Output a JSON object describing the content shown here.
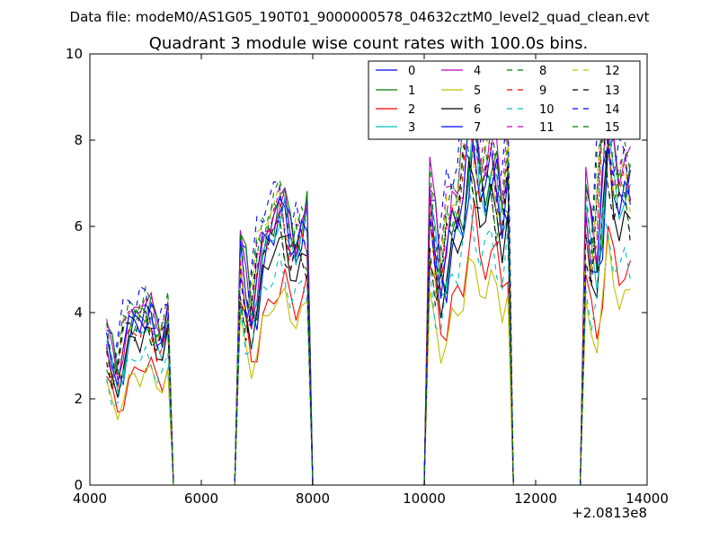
{
  "figure": {
    "suptitle": "Data file: modeM0/AS1G05_190T01_9000000578_04632cztM0_level2_quad_clean.evt",
    "title": "Quadrant 3 module wise count rates with 100.0s bins.",
    "offset_label": "+2.0813e8"
  },
  "chart_data": {
    "type": "line",
    "xlim": [
      4000,
      14000
    ],
    "ylim": [
      0,
      10
    ],
    "xticks": [
      4000,
      6000,
      8000,
      10000,
      12000,
      14000
    ],
    "yticks": [
      0,
      2,
      4,
      6,
      8,
      10
    ],
    "xtick_labels": [
      "4000",
      "6000",
      "8000",
      "10000",
      "12000",
      "14000"
    ],
    "ytick_labels": [
      "0",
      "2",
      "4",
      "6",
      "8",
      "10"
    ],
    "grid": false,
    "legend_position": "top-right",
    "legend_columns": 4,
    "segments": [
      {
        "start": 4300,
        "n": 12
      },
      {
        "start": 6700,
        "n": 13
      },
      {
        "start": 10100,
        "n": 15
      },
      {
        "start": 12900,
        "n": 9
      }
    ],
    "series": [
      {
        "name": "0",
        "color": "#0000ff",
        "dash": false,
        "level": [
          3.6,
          5.6,
          6.6,
          6.9
        ]
      },
      {
        "name": "1",
        "color": "#008000",
        "dash": false,
        "level": [
          3.7,
          5.8,
          6.8,
          7.0
        ]
      },
      {
        "name": "2",
        "color": "#ff0000",
        "dash": false,
        "level": [
          2.5,
          4.2,
          5.0,
          4.9
        ]
      },
      {
        "name": "3",
        "color": "#00bfbf",
        "dash": false,
        "level": [
          3.3,
          5.6,
          6.5,
          6.6
        ]
      },
      {
        "name": "4",
        "color": "#bf00bf",
        "dash": false,
        "level": [
          3.8,
          5.8,
          7.4,
          7.5
        ]
      },
      {
        "name": "5",
        "color": "#bfbf00",
        "dash": false,
        "level": [
          2.4,
          3.9,
          4.4,
          4.4
        ]
      },
      {
        "name": "6",
        "color": "#000000",
        "dash": false,
        "level": [
          3.2,
          5.0,
          6.1,
          6.1
        ]
      },
      {
        "name": "7",
        "color": "#0000ff",
        "dash": false,
        "level": [
          3.6,
          5.7,
          6.8,
          6.7
        ]
      },
      {
        "name": "8",
        "color": "#008000",
        "dash": true,
        "level": [
          3.9,
          6.0,
          7.5,
          7.5
        ]
      },
      {
        "name": "9",
        "color": "#ff0000",
        "dash": true,
        "level": [
          3.3,
          5.5,
          6.9,
          7.0
        ]
      },
      {
        "name": "10",
        "color": "#00bfbf",
        "dash": true,
        "level": [
          2.7,
          4.5,
          5.3,
          5.2
        ]
      },
      {
        "name": "11",
        "color": "#bf00bf",
        "dash": true,
        "level": [
          3.7,
          5.8,
          7.6,
          7.4
        ]
      },
      {
        "name": "12",
        "color": "#bfbf00",
        "dash": true,
        "level": [
          3.7,
          5.9,
          7.2,
          7.2
        ]
      },
      {
        "name": "13",
        "color": "#000000",
        "dash": true,
        "level": [
          3.5,
          5.3,
          6.5,
          6.6
        ]
      },
      {
        "name": "14",
        "color": "#0000ff",
        "dash": true,
        "level": [
          4.0,
          6.1,
          7.8,
          7.7
        ]
      },
      {
        "name": "15",
        "color": "#008000",
        "dash": true,
        "level": [
          3.6,
          5.6,
          6.8,
          6.9
        ]
      }
    ]
  }
}
